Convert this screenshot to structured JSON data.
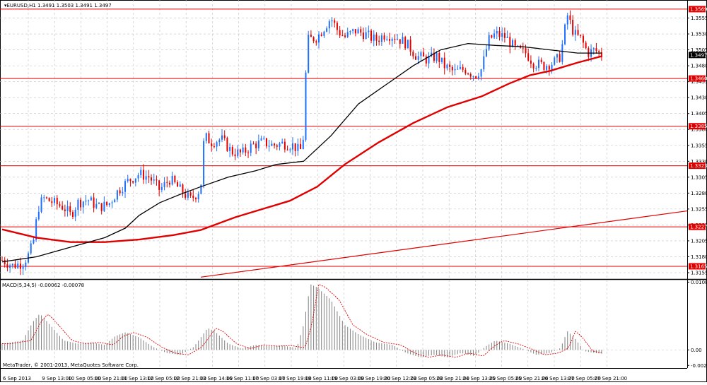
{
  "header": {
    "title_line": "EURUSD,H1  1.3491 1.3503 1.3491 1.3497"
  },
  "colors": {
    "background": "#ffffff",
    "grid": "#c0c0c0",
    "bull_candle": "#1e6fff",
    "bear_candle": "#e00000",
    "ma_fast": "#000000",
    "ma_slow": "#e00000",
    "level_line": "#e00000",
    "macd_hist": "#808080",
    "macd_signal": "#e00000"
  },
  "copyright": "MetaTrader, © 2001-2013, MetaQuotes Software Corp.",
  "chart_data": [
    {
      "type": "candlestick",
      "symbol": "EURUSD",
      "timeframe": "H1",
      "ylim": [
        1.3145,
        1.358
      ],
      "y_ticks": [
        "1.3555",
        "1.3530",
        "1.3505",
        "1.3480",
        "1.3455",
        "1.3430",
        "1.3405",
        "1.3380",
        "1.3355",
        "1.3330",
        "1.3305",
        "1.3280",
        "1.3255",
        "1.3230",
        "1.3205",
        "1.3180",
        "1.3155"
      ],
      "x_ticks": [
        "6 Sep 2013",
        "9 Sep 13:00",
        "10 Sep 05:00",
        "10 Sep 21:00",
        "11 Sep 13:00",
        "12 Sep 05:00",
        "12 Sep 21:00",
        "13 Sep 14:00",
        "16 Sep 11:00",
        "17 Sep 03:00",
        "17 Sep 19:00",
        "18 Sep 11:00",
        "19 Sep 03:00",
        "19 Sep 19:00",
        "20 Sep 12:00",
        "23 Sep 05:00",
        "23 Sep 21:00",
        "24 Sep 13:00",
        "25 Sep 05:00",
        "25 Sep 21:00",
        "26 Sep 13:00",
        "27 Sep 05:00",
        "27 Sep 21:00"
      ],
      "current_price": "1.3497",
      "horizontal_levels": [
        "1.3569",
        "1.3460",
        "1.3385",
        "1.3323",
        "1.3227",
        "1.3165"
      ],
      "trend_line": {
        "start": [
          0.29,
          1.3148
        ],
        "end": [
          1.0,
          1.3252
        ]
      },
      "close_path": [
        [
          0.0,
          1.3175
        ],
        [
          0.015,
          1.3166
        ],
        [
          0.03,
          1.317
        ],
        [
          0.04,
          1.3185
        ],
        [
          0.047,
          1.321
        ],
        [
          0.052,
          1.3255
        ],
        [
          0.06,
          1.3272
        ],
        [
          0.075,
          1.3265
        ],
        [
          0.09,
          1.3258
        ],
        [
          0.1,
          1.3245
        ],
        [
          0.11,
          1.3265
        ],
        [
          0.125,
          1.327
        ],
        [
          0.14,
          1.3258
        ],
        [
          0.155,
          1.3262
        ],
        [
          0.17,
          1.3285
        ],
        [
          0.185,
          1.33
        ],
        [
          0.2,
          1.331
        ],
        [
          0.215,
          1.3305
        ],
        [
          0.23,
          1.3285
        ],
        [
          0.245,
          1.3302
        ],
        [
          0.26,
          1.3285
        ],
        [
          0.275,
          1.327
        ],
        [
          0.285,
          1.328
        ],
        [
          0.29,
          1.329
        ],
        [
          0.295,
          1.337
        ],
        [
          0.305,
          1.336
        ],
        [
          0.32,
          1.3365
        ],
        [
          0.335,
          1.3345
        ],
        [
          0.35,
          1.3342
        ],
        [
          0.365,
          1.3355
        ],
        [
          0.38,
          1.336
        ],
        [
          0.395,
          1.3355
        ],
        [
          0.41,
          1.3358
        ],
        [
          0.425,
          1.3355
        ],
        [
          0.435,
          1.3345
        ],
        [
          0.44,
          1.337
        ],
        [
          0.445,
          1.352
        ],
        [
          0.46,
          1.3525
        ],
        [
          0.47,
          1.354
        ],
        [
          0.48,
          1.3555
        ],
        [
          0.49,
          1.3535
        ],
        [
          0.5,
          1.3525
        ],
        [
          0.515,
          1.3535
        ],
        [
          0.53,
          1.353
        ],
        [
          0.545,
          1.352
        ],
        [
          0.56,
          1.353
        ],
        [
          0.575,
          1.3525
        ],
        [
          0.59,
          1.3515
        ],
        [
          0.605,
          1.3495
        ],
        [
          0.62,
          1.349
        ],
        [
          0.635,
          1.3495
        ],
        [
          0.645,
          1.348
        ],
        [
          0.66,
          1.347
        ],
        [
          0.675,
          1.3475
        ],
        [
          0.69,
          1.3465
        ],
        [
          0.7,
          1.3475
        ],
        [
          0.71,
          1.352
        ],
        [
          0.72,
          1.353
        ],
        [
          0.735,
          1.3525
        ],
        [
          0.75,
          1.3505
        ],
        [
          0.765,
          1.35
        ],
        [
          0.775,
          1.3485
        ],
        [
          0.79,
          1.348
        ],
        [
          0.805,
          1.3485
        ],
        [
          0.815,
          1.3495
        ],
        [
          0.825,
          1.356
        ],
        [
          0.835,
          1.353
        ],
        [
          0.845,
          1.3522
        ],
        [
          0.855,
          1.35
        ],
        [
          0.865,
          1.3505
        ],
        [
          0.875,
          1.3497
        ]
      ],
      "ma_fast": [
        [
          0.0,
          1.3172
        ],
        [
          0.05,
          1.318
        ],
        [
          0.1,
          1.3195
        ],
        [
          0.15,
          1.321
        ],
        [
          0.18,
          1.3225
        ],
        [
          0.2,
          1.3245
        ],
        [
          0.23,
          1.3265
        ],
        [
          0.26,
          1.3278
        ],
        [
          0.29,
          1.329
        ],
        [
          0.33,
          1.3305
        ],
        [
          0.37,
          1.3315
        ],
        [
          0.4,
          1.3325
        ],
        [
          0.44,
          1.333
        ],
        [
          0.48,
          1.337
        ],
        [
          0.52,
          1.342
        ],
        [
          0.56,
          1.345
        ],
        [
          0.6,
          1.348
        ],
        [
          0.64,
          1.3505
        ],
        [
          0.68,
          1.3515
        ],
        [
          0.72,
          1.3512
        ],
        [
          0.76,
          1.351
        ],
        [
          0.8,
          1.3505
        ],
        [
          0.84,
          1.35
        ],
        [
          0.875,
          1.35
        ]
      ],
      "ma_slow": [
        [
          0.0,
          1.3223
        ],
        [
          0.05,
          1.321
        ],
        [
          0.1,
          1.3203
        ],
        [
          0.15,
          1.3203
        ],
        [
          0.2,
          1.3207
        ],
        [
          0.25,
          1.3214
        ],
        [
          0.29,
          1.3222
        ],
        [
          0.34,
          1.3242
        ],
        [
          0.38,
          1.3255
        ],
        [
          0.42,
          1.3268
        ],
        [
          0.46,
          1.329
        ],
        [
          0.5,
          1.3325
        ],
        [
          0.55,
          1.336
        ],
        [
          0.6,
          1.339
        ],
        [
          0.65,
          1.3415
        ],
        [
          0.7,
          1.3432
        ],
        [
          0.74,
          1.3452
        ],
        [
          0.77,
          1.3465
        ],
        [
          0.8,
          1.3472
        ],
        [
          0.84,
          1.3485
        ],
        [
          0.875,
          1.3495
        ]
      ]
    },
    {
      "type": "bar",
      "indicator_label": "MACD(5,34,5) -0.00062 -0.00078",
      "ylim": [
        -0.0029,
        0.0111
      ],
      "y_ticks": [
        "0.01083",
        "0.00",
        "-0.00248"
      ],
      "macd_path": [
        [
          0.0,
          0.001
        ],
        [
          0.03,
          0.0015
        ],
        [
          0.045,
          0.0045
        ],
        [
          0.055,
          0.0058
        ],
        [
          0.07,
          0.004
        ],
        [
          0.09,
          0.0015
        ],
        [
          0.11,
          0.001
        ],
        [
          0.13,
          0.0012
        ],
        [
          0.15,
          0.0008
        ],
        [
          0.165,
          0.0022
        ],
        [
          0.18,
          0.0028
        ],
        [
          0.2,
          0.002
        ],
        [
          0.22,
          0.0005
        ],
        [
          0.24,
          -0.0005
        ],
        [
          0.26,
          -0.0008
        ],
        [
          0.28,
          0.0005
        ],
        [
          0.3,
          0.0035
        ],
        [
          0.31,
          0.003
        ],
        [
          0.33,
          0.001
        ],
        [
          0.35,
          0.0002
        ],
        [
          0.37,
          0.0008
        ],
        [
          0.39,
          0.0006
        ],
        [
          0.41,
          0.0007
        ],
        [
          0.43,
          0.0003
        ],
        [
          0.44,
          0.004
        ],
        [
          0.45,
          0.0105
        ],
        [
          0.46,
          0.01
        ],
        [
          0.48,
          0.008
        ],
        [
          0.5,
          0.004
        ],
        [
          0.52,
          0.0025
        ],
        [
          0.545,
          0.0012
        ],
        [
          0.57,
          0.0008
        ],
        [
          0.59,
          -0.0005
        ],
        [
          0.61,
          -0.0012
        ],
        [
          0.63,
          -0.0008
        ],
        [
          0.65,
          -0.0012
        ],
        [
          0.67,
          -0.0005
        ],
        [
          0.69,
          -0.001
        ],
        [
          0.705,
          0.0005
        ],
        [
          0.72,
          0.0015
        ],
        [
          0.74,
          0.001
        ],
        [
          0.76,
          0.0002
        ],
        [
          0.78,
          -0.0008
        ],
        [
          0.8,
          -0.0005
        ],
        [
          0.815,
          0.0003
        ],
        [
          0.825,
          0.003
        ],
        [
          0.835,
          0.002
        ],
        [
          0.85,
          -0.0002
        ],
        [
          0.865,
          -0.0005
        ],
        [
          0.875,
          -0.0006
        ]
      ]
    }
  ]
}
